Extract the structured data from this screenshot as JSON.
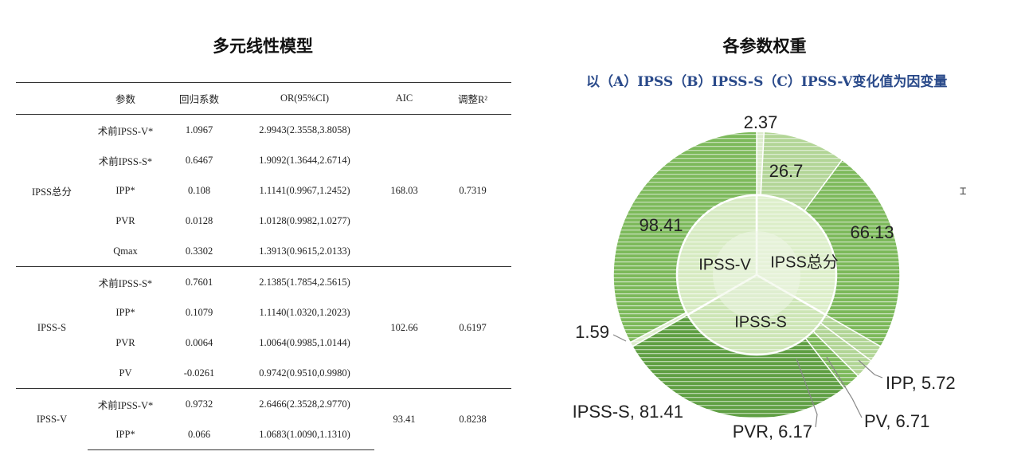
{
  "left": {
    "title": "多元线性模型",
    "headers": [
      "",
      "参数",
      "回归系数",
      "OR(95%CI)",
      "AIC",
      "调整R²"
    ],
    "groups": [
      {
        "name": "IPSS总分",
        "aic": "168.03",
        "r2": "0.7319",
        "rows": [
          {
            "param": "术前IPSS-V*",
            "coef": "1.0967",
            "or": "2.9943(2.3558,3.8058)"
          },
          {
            "param": "术前IPSS-S*",
            "coef": "0.6467",
            "or": "1.9092(1.3644,2.6714)"
          },
          {
            "param": "IPP*",
            "coef": "0.108",
            "or": "1.1141(0.9967,1.2452)"
          },
          {
            "param": "PVR",
            "coef": "0.0128",
            "or": "1.0128(0.9982,1.0277)"
          },
          {
            "param": "Qmax",
            "coef": "0.3302",
            "or": "1.3913(0.9615,2.0133)"
          }
        ]
      },
      {
        "name": "IPSS-S",
        "aic": "102.66",
        "r2": "0.6197",
        "rows": [
          {
            "param": "术前IPSS-S*",
            "coef": "0.7601",
            "or": "2.1385(1.7854,2.5615)"
          },
          {
            "param": "IPP*",
            "coef": "0.1079",
            "or": "1.1140(1.0320,1.2023)"
          },
          {
            "param": "PVR",
            "coef": "0.0064",
            "or": "1.0064(0.9985,1.0144)"
          },
          {
            "param": "PV",
            "coef": "-0.0261",
            "or": "0.9742(0.9510,0.9980)"
          }
        ]
      },
      {
        "name": "IPSS-V",
        "aic": "93.41",
        "r2": "0.8238",
        "rows": [
          {
            "param": "术前IPSS-V*",
            "coef": "0.9732",
            "or": "2.6466(2.3528,2.9770)"
          },
          {
            "param": "IPP*",
            "coef": "0.066",
            "or": "1.0683(1.0090,1.1310)"
          }
        ]
      }
    ]
  },
  "right": {
    "title": "各参数权重",
    "subtitle": "以（A）IPSS（B）IPSS-S（C）IPSS-V变化值为因变量"
  },
  "chart_data": {
    "type": "sunburst",
    "inner": [
      {
        "name": "IPSS总分"
      },
      {
        "name": "IPSS-S"
      },
      {
        "name": "IPSS-V"
      }
    ],
    "outer": [
      {
        "parent": "IPSS总分",
        "label": "2.37",
        "value": 2.37
      },
      {
        "parent": "IPSS总分",
        "label": "26.7",
        "value": 26.7
      },
      {
        "parent": "IPSS总分",
        "label": "66.13",
        "value": 66.13
      },
      {
        "parent": "IPSS-S",
        "label": "IPP, 5.72",
        "value": 5.72
      },
      {
        "parent": "IPSS-S",
        "label": "PV, 6.71",
        "value": 6.71
      },
      {
        "parent": "IPSS-S",
        "label": "PVR, 6.17",
        "value": 6.17
      },
      {
        "parent": "IPSS-S",
        "label": "IPSS-S, 81.41",
        "value": 81.41
      },
      {
        "parent": "IPSS-V",
        "label": "1.59",
        "value": 1.59
      },
      {
        "parent": "IPSS-V",
        "label": "98.41",
        "value": 98.41
      }
    ],
    "colors": {
      "light": "#dceccb",
      "mid": "#b2d596",
      "dark": "#7cb95a",
      "darker": "#5f9f43",
      "center": "#eef6e6",
      "stripe": "#ffffff"
    }
  },
  "cursor_icon": "text-cursor-icon"
}
